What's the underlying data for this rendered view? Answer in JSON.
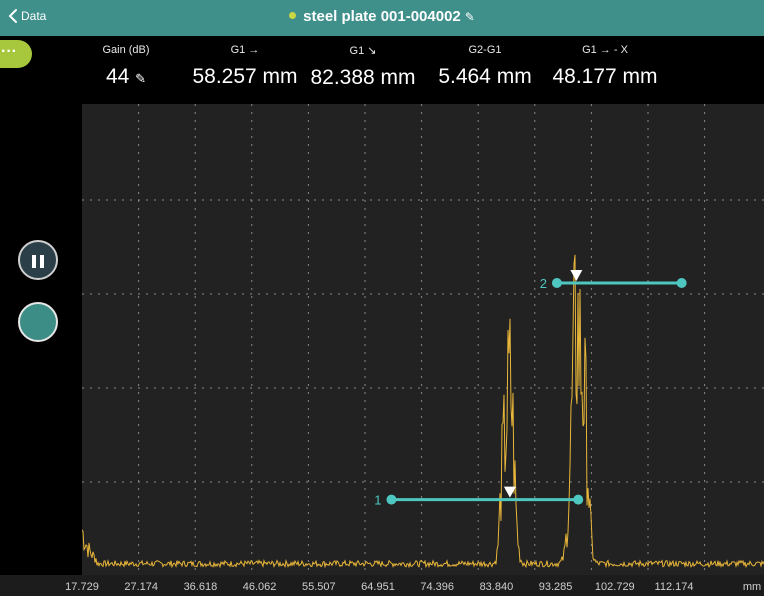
{
  "header": {
    "back_label": "Data",
    "title": "steel plate 001-004002"
  },
  "menu_label": "···",
  "readouts": [
    {
      "label": "Gain (dB)",
      "value": "44"
    },
    {
      "label": "G1 →",
      "value": "58.257 mm"
    },
    {
      "label": "G1 ↘",
      "value": "82.388 mm"
    },
    {
      "label": "G2-G1",
      "value": "5.464 mm"
    },
    {
      "label": "G1 → - X",
      "value": "48.177 mm"
    }
  ],
  "chart_data": {
    "type": "line",
    "x_ticks": [
      "17.729",
      "27.174",
      "36.618",
      "46.062",
      "55.507",
      "64.951",
      "74.396",
      "83.840",
      "93.285",
      "102.729",
      "112.174"
    ],
    "x_unit": "mm",
    "gates": [
      {
        "label": "1",
        "start": 67.1,
        "end": 96.9,
        "level": 0.16,
        "marker": 86.0
      },
      {
        "label": "2",
        "start": 93.5,
        "end": 113.4,
        "level": 0.62,
        "marker": 96.6
      }
    ],
    "colors": {
      "signal": "#e8b63a",
      "gate": "#4fc7c1",
      "grid": "#8a8a8a",
      "plot_bg": "#222222"
    }
  }
}
